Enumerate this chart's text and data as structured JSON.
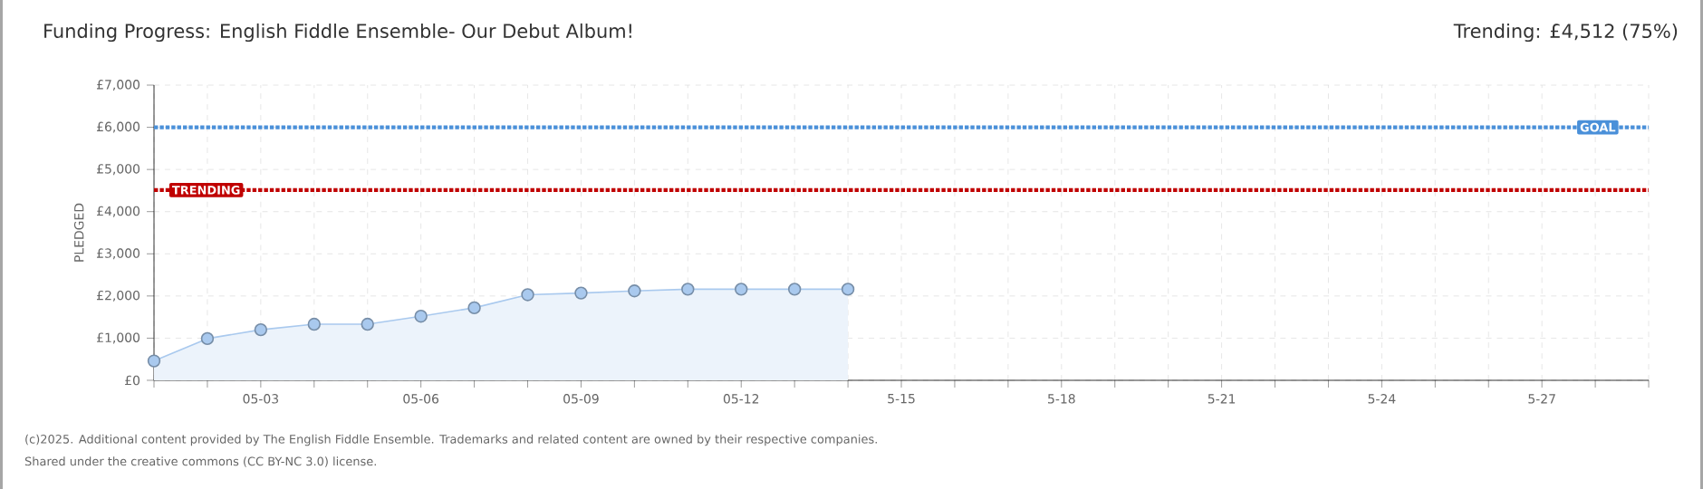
{
  "chart_data": {
    "type": "area",
    "title": "Funding Progress: English Fiddle Ensemble- Our Debut Album!",
    "subtitle": "Trending:  £4,512 (75%)",
    "ylabel": "PLEDGED",
    "categories": [
      null,
      null,
      "05-03",
      null,
      null,
      "05-06",
      null,
      null,
      "05-09",
      null,
      null,
      "05-12",
      null,
      null,
      "5-15",
      null,
      null,
      "5-18",
      null,
      null,
      "5-21",
      null,
      null,
      "5-24",
      null,
      null,
      "5-27",
      null,
      null
    ],
    "series": [
      {
        "color": "#a9c9ee",
        "values": [
          460,
          990,
          1200,
          1330,
          1330,
          1520,
          1720,
          2030,
          2070,
          2120,
          2160,
          2160,
          2160,
          2160,
          null,
          null,
          null,
          null,
          null,
          null,
          null,
          null,
          null,
          null,
          null,
          null,
          null,
          null,
          null
        ]
      }
    ],
    "marker": "circle",
    "grid": true,
    "ylim": [
      0,
      7000
    ],
    "yticks": [
      {
        "value": 0,
        "label": "£0"
      },
      {
        "value": 1000,
        "label": "£1,000"
      },
      {
        "value": 2000,
        "label": "£2,000"
      },
      {
        "value": 3000,
        "label": "£3,000"
      },
      {
        "value": 4000,
        "label": "£4,000"
      },
      {
        "value": 5000,
        "label": "£5,000"
      },
      {
        "value": 6000,
        "label": "£6,000"
      },
      {
        "value": 7000,
        "label": "£7,000"
      }
    ],
    "ref_lines": [
      {
        "axis": "y",
        "value": 6000,
        "label": "GOAL",
        "color": "#4a90d9",
        "line_style": "dotted"
      },
      {
        "axis": "y",
        "value": 4512,
        "label": "TRENDING",
        "color": "#c00000",
        "line_style": "dotted"
      }
    ],
    "annotations": [
      "(c)2025. Additional content provided by The English Fiddle Ensemble. Trademarks and related content are owned by their respective companies.",
      "Shared under the creative commons (CC BY-NC 3.0) license."
    ]
  }
}
